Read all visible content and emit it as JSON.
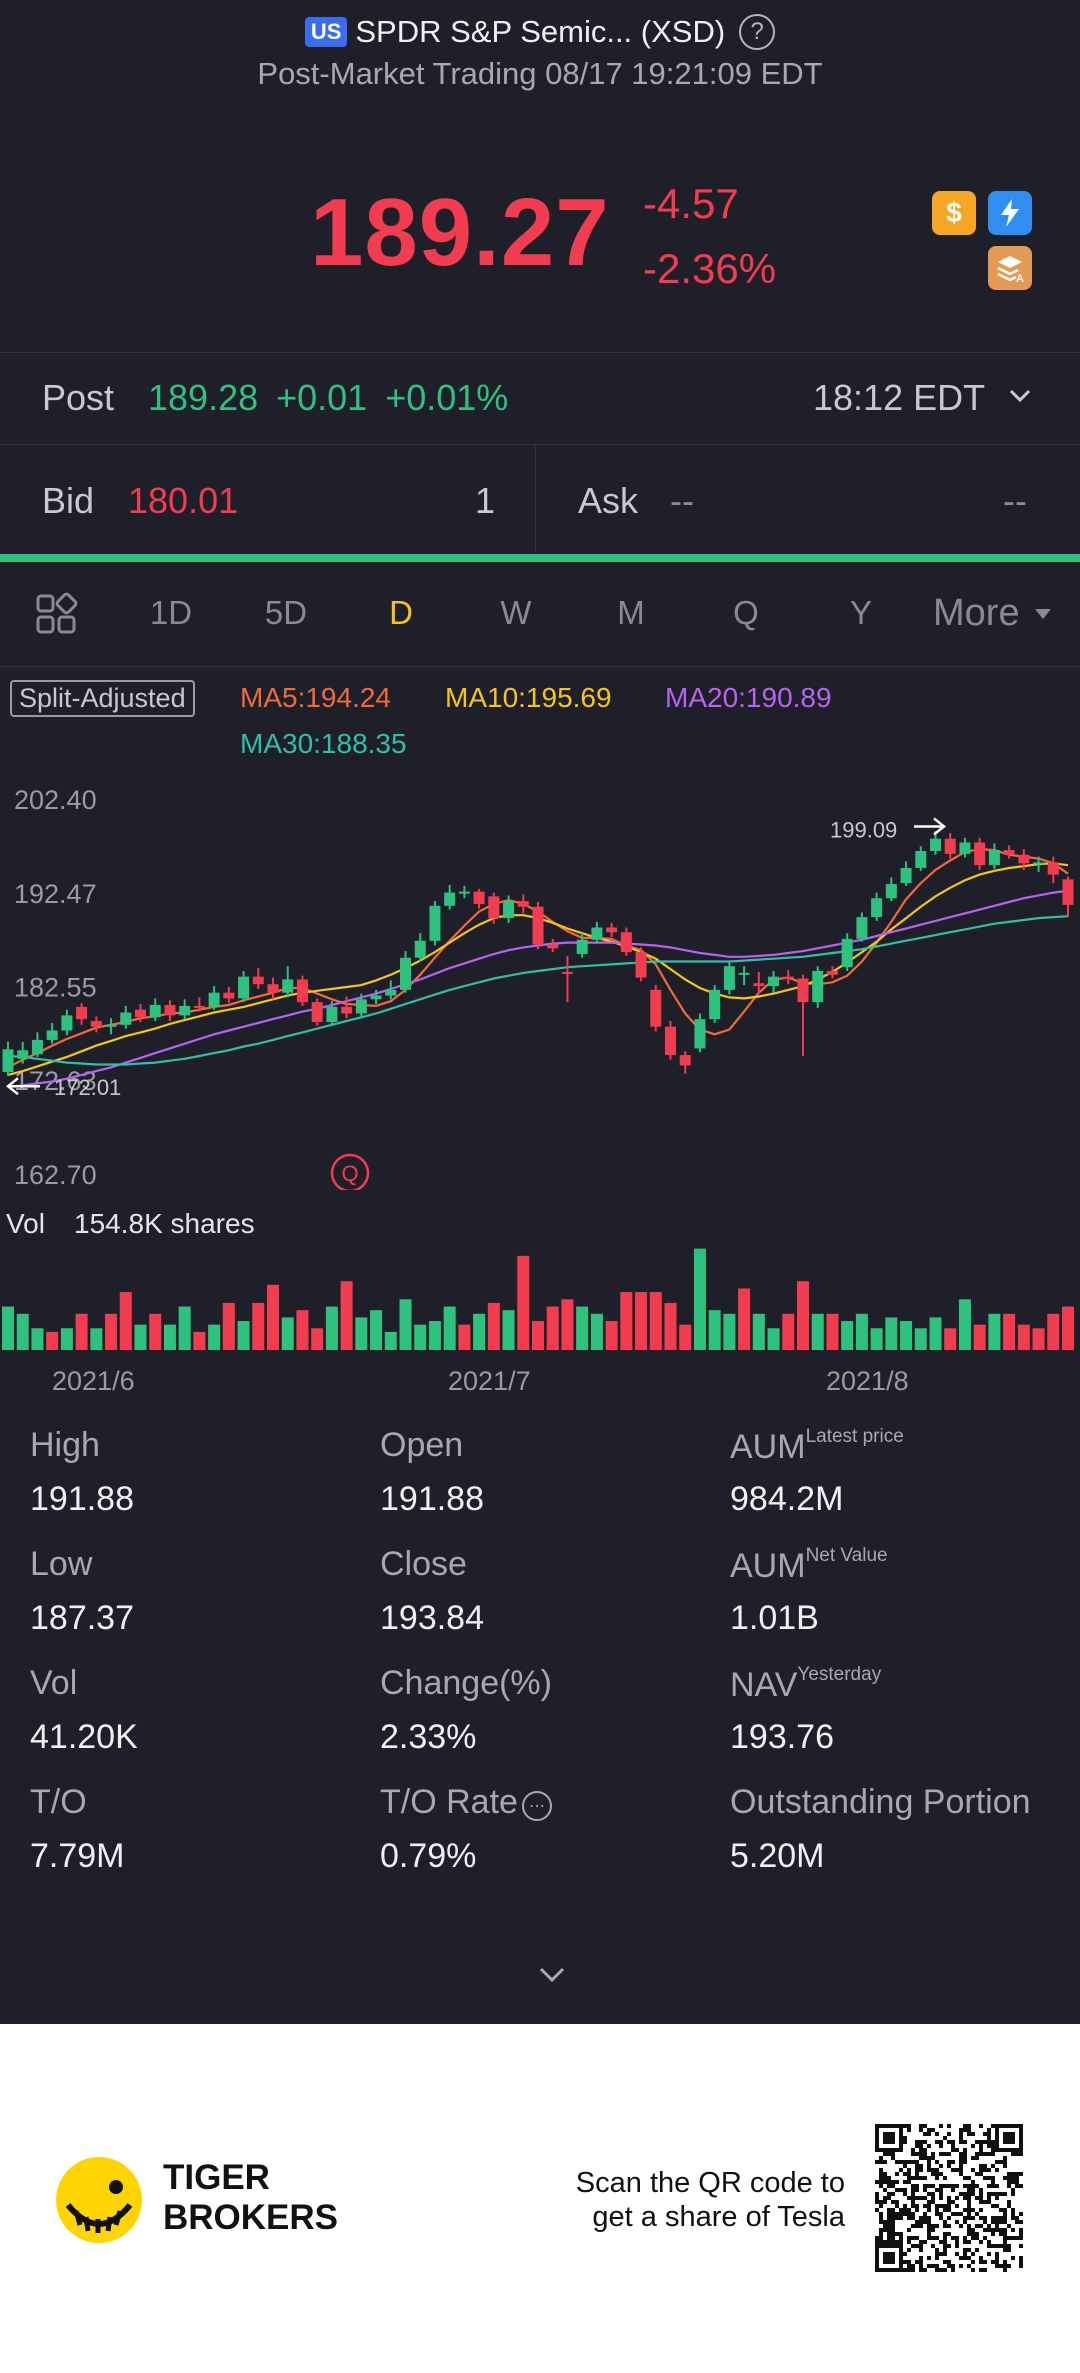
{
  "header": {
    "market_badge": "US",
    "title": "SPDR S&P Semic... (XSD)",
    "help_icon": "question-circle-icon",
    "subtitle": "Post-Market Trading 08/17 19:21:09 EDT"
  },
  "quote": {
    "price": "189.27",
    "change": "-4.57",
    "change_pct": "-2.36%",
    "color_down": "#f23c50",
    "icons": [
      "dollar-icon",
      "lightning-icon",
      "stack-icon"
    ],
    "icon_texts": {
      "dollar": "$",
      "lightning": "⚡"
    }
  },
  "post": {
    "label": "Post",
    "price": "189.28",
    "change": "+0.01",
    "change_pct": "+0.01%",
    "time": "18:12 EDT",
    "color_up": "#2ec27e"
  },
  "bidask": {
    "bid_label": "Bid",
    "bid_price": "180.01",
    "bid_size": "1",
    "ask_label": "Ask",
    "ask_price": "--",
    "ask_size": "--"
  },
  "tabs": {
    "items": [
      "1D",
      "5D",
      "D",
      "W",
      "M",
      "Q",
      "Y"
    ],
    "active": "D",
    "more": "More",
    "active_color": "#f5c518"
  },
  "ma_legend": {
    "split": "Split-Adjusted",
    "ma5": "MA5:194.24",
    "ma10": "MA10:195.69",
    "ma20": "MA20:190.89",
    "ma30": "MA30:188.35"
  },
  "chart_data": {
    "type": "candlestick",
    "y_ticks": [
      "202.40",
      "192.47",
      "182.55",
      "172.63",
      "162.70"
    ],
    "ylim": [
      162.7,
      202.4
    ],
    "x_labels": [
      "2021/6",
      "2021/7",
      "2021/8"
    ],
    "annotations": {
      "high_marker": "199.09",
      "low_marker": "172.01",
      "event_badge": "Q"
    },
    "candles": [
      {
        "o": 173.6,
        "c": 176.0,
        "h": 176.8,
        "l": 173.2
      },
      {
        "o": 175.0,
        "c": 175.9,
        "h": 176.8,
        "l": 174.5
      },
      {
        "o": 175.5,
        "c": 177.0,
        "h": 177.8,
        "l": 175.2
      },
      {
        "o": 177.0,
        "c": 178.0,
        "h": 178.8,
        "l": 176.6
      },
      {
        "o": 178.0,
        "c": 179.6,
        "h": 180.2,
        "l": 177.5
      },
      {
        "o": 180.5,
        "c": 179.2,
        "h": 180.9,
        "l": 178.6
      },
      {
        "o": 179.0,
        "c": 178.4,
        "h": 179.5,
        "l": 177.8
      },
      {
        "o": 178.4,
        "c": 178.6,
        "h": 179.3,
        "l": 177.6
      },
      {
        "o": 178.6,
        "c": 179.9,
        "h": 180.6,
        "l": 178.2
      },
      {
        "o": 180.2,
        "c": 179.4,
        "h": 180.8,
        "l": 178.9
      },
      {
        "o": 179.4,
        "c": 180.7,
        "h": 181.4,
        "l": 179.0
      },
      {
        "o": 180.7,
        "c": 179.6,
        "h": 181.2,
        "l": 179.0
      },
      {
        "o": 179.6,
        "c": 180.6,
        "h": 181.3,
        "l": 179.2
      },
      {
        "o": 180.6,
        "c": 180.5,
        "h": 181.5,
        "l": 180.0
      },
      {
        "o": 180.5,
        "c": 182.0,
        "h": 182.7,
        "l": 180.2
      },
      {
        "o": 182.0,
        "c": 181.4,
        "h": 182.6,
        "l": 180.9
      },
      {
        "o": 181.4,
        "c": 183.7,
        "h": 184.3,
        "l": 181.0
      },
      {
        "o": 183.7,
        "c": 182.9,
        "h": 184.6,
        "l": 182.4
      },
      {
        "o": 182.9,
        "c": 182.0,
        "h": 183.6,
        "l": 181.3
      },
      {
        "o": 182.0,
        "c": 183.4,
        "h": 184.8,
        "l": 181.5
      },
      {
        "o": 183.4,
        "c": 181.0,
        "h": 183.8,
        "l": 180.6
      },
      {
        "o": 181.0,
        "c": 178.9,
        "h": 181.4,
        "l": 178.5
      },
      {
        "o": 178.9,
        "c": 180.5,
        "h": 181.1,
        "l": 178.6
      },
      {
        "o": 180.5,
        "c": 179.8,
        "h": 181.6,
        "l": 179.3
      },
      {
        "o": 179.8,
        "c": 181.3,
        "h": 181.9,
        "l": 179.5
      },
      {
        "o": 181.3,
        "c": 181.7,
        "h": 182.3,
        "l": 180.8
      },
      {
        "o": 181.7,
        "c": 182.3,
        "h": 183.3,
        "l": 181.3
      },
      {
        "o": 182.3,
        "c": 185.7,
        "h": 186.4,
        "l": 182.0
      },
      {
        "o": 185.7,
        "c": 187.5,
        "h": 188.3,
        "l": 185.3
      },
      {
        "o": 187.5,
        "c": 191.2,
        "h": 191.7,
        "l": 187.0
      },
      {
        "o": 191.2,
        "c": 192.6,
        "h": 193.4,
        "l": 190.8
      },
      {
        "o": 192.6,
        "c": 192.7,
        "h": 193.3,
        "l": 192.0
      },
      {
        "o": 192.7,
        "c": 191.4,
        "h": 193.0,
        "l": 190.9
      },
      {
        "o": 192.2,
        "c": 189.9,
        "h": 192.6,
        "l": 189.3
      },
      {
        "o": 189.9,
        "c": 191.7,
        "h": 192.3,
        "l": 189.4
      },
      {
        "o": 191.7,
        "c": 191.1,
        "h": 192.4,
        "l": 190.4
      },
      {
        "o": 191.1,
        "c": 187.1,
        "h": 191.6,
        "l": 186.6
      },
      {
        "o": 187.1,
        "c": 186.7,
        "h": 187.7,
        "l": 186.3
      },
      {
        "o": 184.2,
        "c": 184.0,
        "h": 185.9,
        "l": 181.0
      },
      {
        "o": 186.1,
        "c": 187.6,
        "h": 188.3,
        "l": 185.7
      },
      {
        "o": 187.6,
        "c": 188.9,
        "h": 189.5,
        "l": 187.2
      },
      {
        "o": 188.9,
        "c": 188.4,
        "h": 189.4,
        "l": 187.9
      },
      {
        "o": 188.4,
        "c": 186.3,
        "h": 188.9,
        "l": 185.9
      },
      {
        "o": 186.3,
        "c": 183.6,
        "h": 186.8,
        "l": 183.2
      },
      {
        "o": 182.3,
        "c": 178.4,
        "h": 182.8,
        "l": 177.9
      },
      {
        "o": 178.4,
        "c": 175.4,
        "h": 179.0,
        "l": 174.9
      },
      {
        "o": 175.4,
        "c": 174.3,
        "h": 175.8,
        "l": 173.4
      },
      {
        "o": 176.1,
        "c": 179.2,
        "h": 179.8,
        "l": 175.7
      },
      {
        "o": 179.2,
        "c": 182.3,
        "h": 182.8,
        "l": 178.8
      },
      {
        "o": 182.3,
        "c": 184.8,
        "h": 185.3,
        "l": 181.8
      },
      {
        "o": 184.0,
        "c": 184.1,
        "h": 184.8,
        "l": 182.8
      },
      {
        "o": 183.0,
        "c": 182.7,
        "h": 184.2,
        "l": 181.9
      },
      {
        "o": 182.7,
        "c": 183.7,
        "h": 184.3,
        "l": 182.0
      },
      {
        "o": 183.7,
        "c": 183.5,
        "h": 184.4,
        "l": 182.9
      },
      {
        "o": 183.5,
        "c": 181.0,
        "h": 183.9,
        "l": 175.3
      },
      {
        "o": 181.0,
        "c": 184.3,
        "h": 184.8,
        "l": 180.4
      },
      {
        "o": 184.3,
        "c": 183.9,
        "h": 184.8,
        "l": 183.5
      },
      {
        "o": 184.7,
        "c": 187.7,
        "h": 188.3,
        "l": 184.3
      },
      {
        "o": 187.7,
        "c": 190.0,
        "h": 190.5,
        "l": 187.4
      },
      {
        "o": 190.0,
        "c": 192.0,
        "h": 192.6,
        "l": 189.6
      },
      {
        "o": 192.0,
        "c": 193.5,
        "h": 194.2,
        "l": 191.7
      },
      {
        "o": 193.6,
        "c": 195.2,
        "h": 195.9,
        "l": 193.3
      },
      {
        "o": 195.2,
        "c": 197.0,
        "h": 197.5,
        "l": 194.9
      },
      {
        "o": 197.0,
        "c": 198.3,
        "h": 199.1,
        "l": 196.6
      },
      {
        "o": 198.3,
        "c": 196.7,
        "h": 198.9,
        "l": 196.2
      },
      {
        "o": 196.7,
        "c": 197.9,
        "h": 198.4,
        "l": 196.3
      },
      {
        "o": 197.9,
        "c": 195.5,
        "h": 198.4,
        "l": 195.0
      },
      {
        "o": 195.5,
        "c": 197.1,
        "h": 197.8,
        "l": 195.1
      },
      {
        "o": 197.1,
        "c": 196.6,
        "h": 197.6,
        "l": 196.2
      },
      {
        "o": 196.6,
        "c": 195.7,
        "h": 197.2,
        "l": 195.0
      },
      {
        "o": 195.7,
        "c": 195.8,
        "h": 196.4,
        "l": 194.8
      },
      {
        "o": 195.8,
        "c": 194.5,
        "h": 196.4,
        "l": 193.6
      },
      {
        "o": 194.0,
        "c": 191.3,
        "h": 194.3,
        "l": 190.0
      }
    ],
    "ma_lines": {
      "ma5": [
        174.1,
        174.9,
        175.6,
        176.4,
        177.1,
        177.7,
        178.3,
        178.6,
        178.9,
        179.3,
        179.5,
        179.8,
        179.9,
        180.2,
        180.5,
        180.7,
        181.2,
        181.6,
        182.0,
        182.5,
        182.5,
        181.9,
        181.3,
        180.8,
        180.7,
        180.6,
        181.1,
        182.3,
        183.9,
        185.7,
        187.5,
        189.1,
        190.6,
        191.4,
        191.8,
        191.4,
        190.6,
        189.5,
        188.5,
        187.8,
        187.8,
        187.7,
        187.0,
        186.5,
        185.0,
        182.3,
        179.8,
        178.1,
        177.6,
        178.1,
        180.0,
        182.0,
        183.4,
        183.6,
        183.0,
        182.9,
        183.1,
        183.8,
        185.3,
        187.3,
        189.5,
        191.9,
        193.6,
        195.0,
        196.0,
        196.9,
        197.2,
        197.1,
        196.6,
        196.4,
        196.2,
        195.7,
        194.6
      ],
      "ma10": [
        173.3,
        173.7,
        174.2,
        174.7,
        175.2,
        175.8,
        176.4,
        176.9,
        177.4,
        177.8,
        178.2,
        178.7,
        179.1,
        179.5,
        179.9,
        180.2,
        180.5,
        180.9,
        181.3,
        181.7,
        182.0,
        182.2,
        182.4,
        182.6,
        182.8,
        183.3,
        183.9,
        184.6,
        185.4,
        186.3,
        187.3,
        188.3,
        189.2,
        189.9,
        190.2,
        190.2,
        189.9,
        189.4,
        188.8,
        188.3,
        187.8,
        187.4,
        186.9,
        186.3,
        185.6,
        184.5,
        183.4,
        182.5,
        181.9,
        181.5,
        181.4,
        181.6,
        181.9,
        182.3,
        182.7,
        183.4,
        184.2,
        185.2,
        186.3,
        187.4,
        188.7,
        189.9,
        191.1,
        192.2,
        193.1,
        193.9,
        194.5,
        194.9,
        195.2,
        195.4,
        195.6,
        195.7,
        195.5
      ],
      "ma20": [
        172.0,
        172.2,
        172.4,
        172.6,
        172.9,
        173.3,
        173.7,
        174.1,
        174.6,
        175.1,
        175.6,
        176.1,
        176.6,
        177.1,
        177.6,
        178.0,
        178.4,
        178.8,
        179.2,
        179.6,
        180.0,
        180.3,
        180.7,
        181.1,
        181.5,
        181.9,
        182.4,
        182.9,
        183.4,
        184.0,
        184.6,
        185.1,
        185.6,
        186.1,
        186.5,
        186.8,
        187.0,
        187.2,
        187.3,
        187.3,
        187.3,
        187.3,
        187.2,
        187.1,
        187.0,
        186.8,
        186.5,
        186.2,
        186.0,
        185.8,
        185.8,
        185.9,
        186.0,
        186.2,
        186.4,
        186.7,
        187.0,
        187.3,
        187.6,
        188.0,
        188.4,
        188.8,
        189.2,
        189.6,
        190.0,
        190.4,
        190.8,
        191.2,
        191.6,
        192.0,
        192.3,
        192.6,
        192.8
      ],
      "ma30": [
        175.3,
        175.2,
        175.0,
        174.8,
        174.6,
        174.5,
        174.4,
        174.4,
        174.4,
        174.5,
        174.6,
        174.8,
        175.0,
        175.3,
        175.6,
        175.9,
        176.3,
        176.6,
        177.0,
        177.4,
        177.8,
        178.2,
        178.6,
        179.0,
        179.4,
        179.8,
        180.3,
        180.8,
        181.3,
        181.8,
        182.3,
        182.7,
        183.1,
        183.5,
        183.8,
        184.1,
        184.3,
        184.5,
        184.7,
        184.8,
        184.9,
        185.0,
        185.1,
        185.2,
        185.3,
        185.3,
        185.3,
        185.3,
        185.3,
        185.3,
        185.4,
        185.5,
        185.6,
        185.7,
        185.8,
        186.0,
        186.2,
        186.4,
        186.6,
        186.9,
        187.2,
        187.5,
        187.8,
        188.1,
        188.4,
        188.7,
        189.0,
        189.3,
        189.5,
        189.7,
        189.9,
        190.0,
        190.1
      ]
    },
    "volume_label": "Vol",
    "volume_shares": "154.8K shares",
    "volume": {
      "values": [
        0.6,
        0.5,
        0.3,
        0.25,
        0.3,
        0.5,
        0.3,
        0.5,
        0.8,
        0.35,
        0.5,
        0.35,
        0.6,
        0.25,
        0.35,
        0.65,
        0.4,
        0.65,
        0.9,
        0.45,
        0.55,
        0.3,
        0.6,
        0.95,
        0.45,
        0.55,
        0.25,
        0.7,
        0.35,
        0.4,
        0.6,
        0.35,
        0.5,
        0.65,
        0.55,
        1.3,
        0.4,
        0.6,
        0.7,
        0.6,
        0.5,
        0.4,
        0.8,
        0.8,
        0.8,
        0.65,
        0.35,
        1.4,
        0.55,
        0.5,
        0.85,
        0.5,
        0.3,
        0.5,
        0.95,
        0.5,
        0.5,
        0.4,
        0.5,
        0.3,
        0.45,
        0.4,
        0.3,
        0.45,
        0.3,
        0.7,
        0.35,
        0.5,
        0.5,
        0.35,
        0.3,
        0.5,
        0.6
      ],
      "up": [
        true,
        true,
        true,
        false,
        true,
        false,
        true,
        false,
        false,
        true,
        false,
        true,
        true,
        false,
        true,
        false,
        true,
        false,
        false,
        true,
        false,
        false,
        true,
        false,
        true,
        true,
        true,
        true,
        true,
        true,
        true,
        false,
        true,
        false,
        true,
        false,
        false,
        false,
        false,
        true,
        true,
        false,
        false,
        false,
        false,
        false,
        false,
        true,
        true,
        true,
        false,
        true,
        true,
        false,
        false,
        true,
        false,
        true,
        true,
        true,
        true,
        true,
        true,
        true,
        false,
        true,
        false,
        true,
        false,
        false,
        false,
        false,
        false
      ]
    }
  },
  "stats": [
    {
      "label": "High",
      "value": "191.88",
      "sup": ""
    },
    {
      "label": "Open",
      "value": "191.88",
      "sup": ""
    },
    {
      "label": "AUM",
      "value": "984.2M",
      "sup": "Latest price"
    },
    {
      "label": "Low",
      "value": "187.37",
      "sup": ""
    },
    {
      "label": "Close",
      "value": "193.84",
      "sup": ""
    },
    {
      "label": "AUM",
      "value": "1.01B",
      "sup": "Net Value"
    },
    {
      "label": "Vol",
      "value": "41.20K",
      "sup": ""
    },
    {
      "label": "Change(%)",
      "value": "2.33%",
      "sup": ""
    },
    {
      "label": "NAV",
      "value": "193.76",
      "sup": "Yesterday"
    },
    {
      "label": "T/O",
      "value": "7.79M",
      "sup": ""
    },
    {
      "label": "T/O Rate",
      "value": "0.79%",
      "sup": ""
    },
    {
      "label": "Outstanding Portion",
      "value": "5.20M",
      "sup": ""
    }
  ],
  "footer": {
    "brand_line1": "TIGER",
    "brand_line2": "BROKERS",
    "qr_line1": "Scan the QR code to",
    "qr_line2": "get a share of Tesla"
  }
}
